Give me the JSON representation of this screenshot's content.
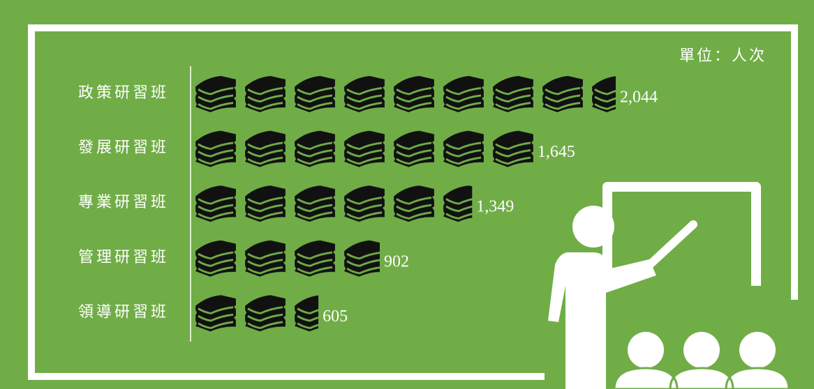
{
  "chart_data": {
    "type": "pictograph",
    "unit_label": "單位：人次",
    "categories": [
      "政策研習班",
      "發展研習班",
      "專業研習班",
      "管理研習班",
      "領導研習班"
    ],
    "values": [
      2044,
      1645,
      1349,
      902,
      605
    ],
    "value_labels": [
      "2,044",
      "1,645",
      "1,349",
      "902",
      "605"
    ],
    "color": "#000000"
  }
}
